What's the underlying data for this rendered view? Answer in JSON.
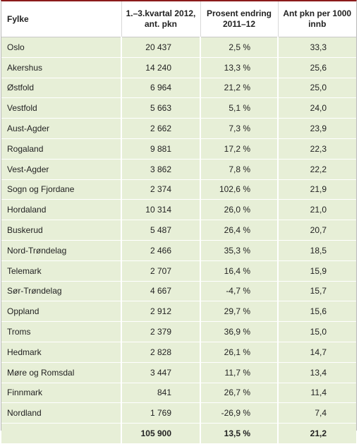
{
  "table": {
    "header": [
      "Fylke",
      "1.–3.kvartal 2012,\nant. pkn",
      "Prosent endring\n2011–12",
      "Ant pkn per 1000\ninnb"
    ],
    "rows": [
      [
        "Oslo",
        "20 437",
        "2,5 %",
        "33,3"
      ],
      [
        "Akershus",
        "14 240",
        "13,3 %",
        "25,6"
      ],
      [
        "Østfold",
        "6 964",
        "21,2 %",
        "25,0"
      ],
      [
        "Vestfold",
        "5 663",
        "5,1 %",
        "24,0"
      ],
      [
        "Aust-Agder",
        "2 662",
        "7,3 %",
        "23,9"
      ],
      [
        "Rogaland",
        "9 881",
        "17,2 %",
        "22,3"
      ],
      [
        "Vest-Agder",
        "3 862",
        "7,8 %",
        "22,2"
      ],
      [
        "Sogn og Fjordane",
        "2 374",
        "102,6 %",
        "21,9"
      ],
      [
        "Hordaland",
        "10 314",
        "26,0 %",
        "21,0"
      ],
      [
        "Buskerud",
        "5 487",
        "26,4 %",
        "20,7"
      ],
      [
        "Nord-Trøndelag",
        "2 466",
        "35,3 %",
        "18,5"
      ],
      [
        "Telemark",
        "2 707",
        "16,4 %",
        "15,9"
      ],
      [
        "Sør-Trøndelag",
        "4 667",
        "-4,7 %",
        "15,7"
      ],
      [
        "Oppland",
        "2 912",
        "29,7 %",
        "15,6"
      ],
      [
        "Troms",
        "2 379",
        "36,9 %",
        "15,0"
      ],
      [
        "Hedmark",
        "2 828",
        "26,1 %",
        "14,7"
      ],
      [
        "Møre og Romsdal",
        "3 447",
        "11,7 %",
        "13,4"
      ],
      [
        "Finnmark",
        "841",
        "26,7 %",
        "11,4"
      ],
      [
        "Nordland",
        "1 769",
        "-26,9 %",
        "7,4"
      ]
    ],
    "total": [
      "105 900",
      "13,5 %",
      "21,2"
    ]
  }
}
